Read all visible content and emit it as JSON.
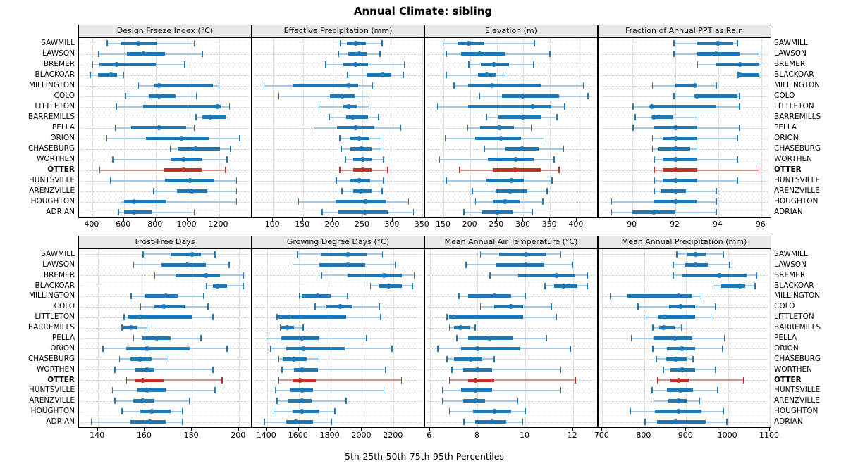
{
  "title": "Annual Climate: sibling",
  "footer": "5th-25th-50th-75th-95th Percentiles",
  "highlight_station": "OTTER",
  "colors": {
    "series_blue": "#1f77b4",
    "series_blue_light": "#a3c9e4",
    "highlight_red": "#c03128",
    "highlight_red_light": "#dd9089",
    "header_bg": "#e8e8e8",
    "grid": "#c9c9c9"
  },
  "stations": [
    "SAWMILL",
    "LAWSON",
    "BREMER",
    "BLACKOAR",
    "MILLINGTON",
    "COLO",
    "LITTLETON",
    "BARREMILLS",
    "PELLA",
    "ORION",
    "CHASEBURG",
    "WORTHEN",
    "OTTER",
    "HUNTSVILLE",
    "ARENZVILLE",
    "HOUGHTON",
    "ADRIAN"
  ],
  "chart_data": {
    "type": "scatter",
    "subtype": "trellis percentile interval dotplot (2 rows x 4 columns of panels)",
    "percentiles": [
      5,
      25,
      50,
      75,
      95
    ],
    "legend_note": "dot = median, thick bar = 25th-75th, thin line with caps = 5th-95th; OTTER row highlighted red",
    "categories": [
      "SAWMILL",
      "LAWSON",
      "BREMER",
      "BLACKOAR",
      "MILLINGTON",
      "COLO",
      "LITTLETON",
      "BARREMILLS",
      "PELLA",
      "ORION",
      "CHASEBURG",
      "WORTHEN",
      "OTTER",
      "HUNTSVILLE",
      "ARENZVILLE",
      "HOUGHTON",
      "ADRIAN"
    ],
    "panels": [
      {
        "title": "Design Freeze Index (°C)",
        "grid_row": 0,
        "grid_col": 0,
        "domain": [
          316,
          1400
        ],
        "ticks": [
          400,
          600,
          800,
          1000,
          1200
        ],
        "values": [
          [
            490,
            585,
            690,
            810,
            1045
          ],
          [
            437,
            620,
            725,
            860,
            1095
          ],
          [
            400,
            445,
            555,
            800,
            985
          ],
          [
            385,
            437,
            520,
            556,
            600
          ],
          [
            689,
            792,
            822,
            1163,
            1200
          ],
          [
            607,
            756,
            822,
            926,
            1059
          ],
          [
            548,
            720,
            1190,
            1210,
            1267
          ],
          [
            1052,
            1096,
            1148,
            1244,
            1259
          ],
          [
            541,
            644,
            822,
            993,
            1044
          ],
          [
            489,
            741,
            963,
            1133,
            1333
          ],
          [
            889,
            941,
            1052,
            1207,
            1274
          ],
          [
            526,
            896,
            978,
            1096,
            1252
          ],
          [
            444,
            852,
            978,
            1089,
            1244
          ],
          [
            511,
            859,
            1015,
            1170,
            1311
          ],
          [
            785,
            933,
            1030,
            1126,
            1311
          ],
          [
            578,
            600,
            667,
            867,
            1311
          ],
          [
            563,
            600,
            667,
            778,
            1044
          ]
        ]
      },
      {
        "title": "Effective Precipitation (mm)",
        "grid_row": 0,
        "grid_col": 1,
        "domain": [
          65,
          352
        ],
        "ticks": [
          100,
          150,
          200,
          250,
          300,
          350
        ],
        "values": [
          [
            212,
            224,
            238,
            255,
            283
          ],
          [
            209,
            226,
            244,
            257,
            279
          ],
          [
            187,
            218,
            238,
            259,
            320
          ],
          [
            224,
            257,
            283,
            298,
            318
          ],
          [
            84,
            133,
            226,
            242,
            267
          ],
          [
            109,
            195,
            216,
            236,
            261
          ],
          [
            176,
            218,
            226,
            240,
            261
          ],
          [
            193,
            222,
            234,
            259,
            277
          ],
          [
            168,
            207,
            238,
            269,
            314
          ],
          [
            211,
            230,
            244,
            261,
            281
          ],
          [
            213,
            230,
            248,
            265,
            281
          ],
          [
            220,
            234,
            250,
            265,
            285
          ],
          [
            211,
            234,
            250,
            265,
            292
          ],
          [
            205,
            230,
            244,
            263,
            285
          ],
          [
            214,
            234,
            246,
            265,
            283
          ],
          [
            142,
            205,
            255,
            290,
            327
          ],
          [
            181,
            209,
            253,
            292,
            335
          ]
        ]
      },
      {
        "title": "Elevation (m)",
        "grid_row": 0,
        "grid_col": 2,
        "domain": [
          115,
          438
        ],
        "ticks": [
          150,
          200,
          250,
          300,
          350,
          400
        ],
        "values": [
          [
            148,
            176,
            196,
            227,
            321
          ],
          [
            154,
            183,
            218,
            266,
            350
          ],
          [
            196,
            220,
            244,
            273,
            319
          ],
          [
            154,
            214,
            231,
            247,
            266
          ],
          [
            168,
            196,
            240,
            332,
            413
          ],
          [
            216,
            260,
            299,
            367,
            422
          ],
          [
            137,
            196,
            317,
            352,
            378
          ],
          [
            229,
            253,
            299,
            334,
            363
          ],
          [
            194,
            218,
            255,
            282,
            315
          ],
          [
            152,
            209,
            258,
            295,
            339
          ],
          [
            225,
            266,
            297,
            328,
            376
          ],
          [
            141,
            233,
            286,
            319,
            358
          ],
          [
            179,
            242,
            284,
            332,
            367
          ],
          [
            154,
            231,
            277,
            301,
            354
          ],
          [
            203,
            247,
            275,
            308,
            345
          ],
          [
            209,
            242,
            266,
            293,
            337
          ],
          [
            187,
            222,
            251,
            280,
            317
          ]
        ]
      },
      {
        "title": "Fraction of Annual PPT as Rain",
        "grid_row": 0,
        "grid_col": 3,
        "domain": [
          88.4,
          96.4
        ],
        "ticks": [
          90,
          92,
          94,
          96
        ],
        "values": [
          [
            91.9,
            93.0,
            94.0,
            94.7,
            94.9
          ],
          [
            91.9,
            93.0,
            93.9,
            95.0,
            95.9
          ],
          [
            93.0,
            93.9,
            95.0,
            95.9,
            96.0
          ],
          [
            94.9,
            95.0,
            95.0,
            95.9,
            96.0
          ],
          [
            90.9,
            92.0,
            92.9,
            93.0,
            93.9
          ],
          [
            91.9,
            92.9,
            93.0,
            94.9,
            95.0
          ],
          [
            90.0,
            90.9,
            90.9,
            93.9,
            95.0
          ],
          [
            90.1,
            90.9,
            91.0,
            91.9,
            93.0
          ],
          [
            90.0,
            91.0,
            92.0,
            93.0,
            95.0
          ],
          [
            90.9,
            91.4,
            92.0,
            93.0,
            94.9
          ],
          [
            90.9,
            91.2,
            92.0,
            92.7,
            93.0
          ],
          [
            91.0,
            91.4,
            92.0,
            93.0,
            94.9
          ],
          [
            91.0,
            91.4,
            92.0,
            93.0,
            95.9
          ],
          [
            91.0,
            91.4,
            92.0,
            93.0,
            94.9
          ],
          [
            91.0,
            91.3,
            92.0,
            92.5,
            93.9
          ],
          [
            89.0,
            91.0,
            92.0,
            93.0,
            93.9
          ],
          [
            89.0,
            90.0,
            91.0,
            92.0,
            93.9
          ]
        ]
      },
      {
        "title": "Frost-Free Days",
        "grid_row": 1,
        "grid_col": 0,
        "domain": [
          132,
          205
        ],
        "ticks": [
          140,
          160,
          180,
          200
        ],
        "values": [
          [
            159,
            171,
            180,
            184,
            190
          ],
          [
            155,
            167,
            178,
            186,
            196
          ],
          [
            164,
            173,
            186,
            192,
            202
          ],
          [
            186,
            189,
            191,
            195,
            202
          ],
          [
            154,
            160,
            169,
            174,
            185
          ],
          [
            158,
            164,
            168,
            177,
            187
          ],
          [
            151,
            153,
            158,
            180,
            189
          ],
          [
            150,
            151,
            154,
            157,
            161
          ],
          [
            155,
            159,
            165,
            171,
            184
          ],
          [
            142,
            152,
            161,
            179,
            195
          ],
          [
            149,
            154,
            158,
            163,
            170
          ],
          [
            147,
            156,
            161,
            164,
            189
          ],
          [
            152,
            156,
            159,
            168,
            193
          ],
          [
            146,
            157,
            161,
            169,
            190
          ],
          [
            147,
            155,
            159,
            164,
            179
          ],
          [
            150,
            158,
            163,
            171,
            176
          ],
          [
            137,
            154,
            162,
            169,
            176
          ]
        ]
      },
      {
        "title": "Growing Degree Days (°C)",
        "grid_row": 1,
        "grid_col": 1,
        "domain": [
          1305,
          2390
        ],
        "ticks": [
          1400,
          1600,
          1800,
          2000,
          2200
        ],
        "values": [
          [
            1590,
            1740,
            1910,
            2030,
            2130
          ],
          [
            1560,
            1730,
            1910,
            2020,
            2210
          ],
          [
            1740,
            1910,
            2140,
            2250,
            2330
          ],
          [
            2050,
            2110,
            2170,
            2250,
            2320
          ],
          [
            1600,
            1620,
            1720,
            1800,
            1910
          ],
          [
            1700,
            1770,
            1860,
            1940,
            2110
          ],
          [
            1460,
            1470,
            1540,
            1900,
            2120
          ],
          [
            1480,
            1490,
            1530,
            1570,
            1630
          ],
          [
            1390,
            1490,
            1620,
            1730,
            2030
          ],
          [
            1420,
            1520,
            1630,
            1890,
            2190
          ],
          [
            1470,
            1500,
            1570,
            1650,
            1730
          ],
          [
            1490,
            1570,
            1620,
            1720,
            2150
          ],
          [
            1470,
            1560,
            1610,
            1710,
            2250
          ],
          [
            1450,
            1550,
            1620,
            1690,
            2140
          ],
          [
            1460,
            1530,
            1620,
            1680,
            1900
          ],
          [
            1440,
            1560,
            1620,
            1730,
            1830
          ],
          [
            1380,
            1520,
            1580,
            1690,
            1810
          ]
        ]
      },
      {
        "title": "Mean Annual Air Temperature (°C)",
        "grid_row": 1,
        "grid_col": 2,
        "domain": [
          5.8,
          13.0
        ],
        "ticks": [
          6,
          8,
          10,
          12
        ],
        "values": [
          [
            8.1,
            8.9,
            10.0,
            10.9,
            11.5
          ],
          [
            7.5,
            8.8,
            10.0,
            10.8,
            12.0
          ],
          [
            8.5,
            9.7,
            11.3,
            12.1,
            12.6
          ],
          [
            10.8,
            11.2,
            11.6,
            12.2,
            12.6
          ],
          [
            7.2,
            7.6,
            8.7,
            9.4,
            10.0
          ],
          [
            8.1,
            8.7,
            9.4,
            9.9,
            11.1
          ],
          [
            6.7,
            6.8,
            7.0,
            9.9,
            11.3
          ],
          [
            6.8,
            7.0,
            7.3,
            7.7,
            7.9
          ],
          [
            7.1,
            7.6,
            8.5,
            9.5,
            10.9
          ],
          [
            6.3,
            7.3,
            8.0,
            9.8,
            11.9
          ],
          [
            6.7,
            7.0,
            7.7,
            8.2,
            8.7
          ],
          [
            6.9,
            7.4,
            8.0,
            8.6,
            11.5
          ],
          [
            6.8,
            7.6,
            7.9,
            8.7,
            12.1
          ],
          [
            6.5,
            7.3,
            7.9,
            8.6,
            11.5
          ],
          [
            6.5,
            7.4,
            7.9,
            8.3,
            9.7
          ],
          [
            6.8,
            7.8,
            8.7,
            9.4,
            10.0
          ],
          [
            7.4,
            7.9,
            8.6,
            9.2,
            9.9
          ]
        ]
      },
      {
        "title": "Mean Annual Precipitation (mm)",
        "grid_row": 1,
        "grid_col": 3,
        "domain": [
          690,
          1100
        ],
        "ticks": [
          700,
          800,
          900,
          1000,
          1100
        ],
        "values": [
          [
            876,
            901,
            922,
            946,
            990
          ],
          [
            868,
            898,
            922,
            952,
            1004
          ],
          [
            868,
            892,
            980,
            1044,
            1068
          ],
          [
            963,
            982,
            1028,
            1041,
            1065
          ],
          [
            717,
            760,
            882,
            914,
            936
          ],
          [
            784,
            860,
            887,
            922,
            971
          ],
          [
            803,
            833,
            849,
            922,
            960
          ],
          [
            819,
            836,
            847,
            873,
            890
          ],
          [
            768,
            822,
            873,
            914,
            992
          ],
          [
            819,
            855,
            890,
            922,
            987
          ],
          [
            828,
            852,
            876,
            901,
            917
          ],
          [
            844,
            863,
            890,
            922,
            971
          ],
          [
            830,
            863,
            882,
            906,
            1038
          ],
          [
            817,
            855,
            887,
            917,
            976
          ],
          [
            822,
            857,
            882,
            901,
            933
          ],
          [
            766,
            825,
            882,
            936,
            990
          ],
          [
            801,
            830,
            876,
            946,
            998
          ]
        ]
      }
    ]
  }
}
